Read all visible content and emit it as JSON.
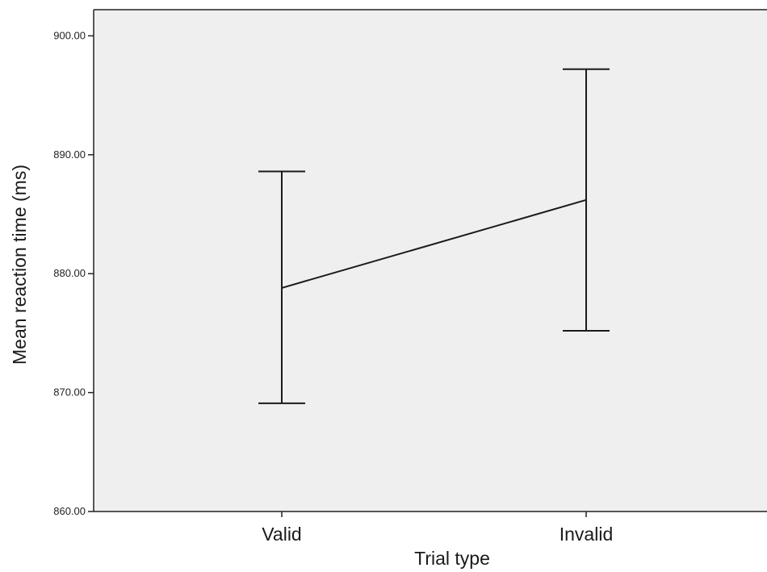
{
  "chart_data": {
    "type": "line",
    "title": "",
    "xlabel": "Trial type",
    "ylabel": "Mean reaction time (ms)",
    "categories": [
      "Valid",
      "Invalid"
    ],
    "series": [
      {
        "values": [
          878.8,
          886.2
        ],
        "error_low": [
          869.1,
          875.2
        ],
        "error_high": [
          888.6,
          897.2
        ]
      }
    ],
    "ylim": [
      860,
      902.2
    ],
    "yticks": [
      860,
      870,
      880,
      890,
      900
    ],
    "ytick_labels": [
      "860.00",
      "870.00",
      "880.00",
      "890.00",
      "900.00"
    ],
    "grid": false,
    "colors": {
      "plot_background": "#efefef",
      "line": "#1a1a1a",
      "axis": "#222222"
    }
  }
}
